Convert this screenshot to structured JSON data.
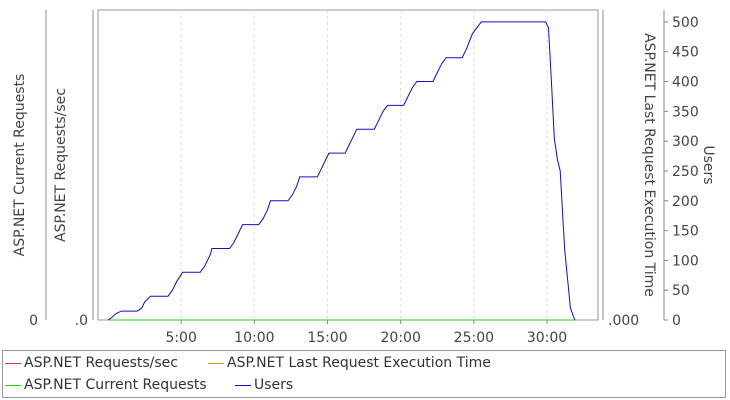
{
  "chart_data": {
    "type": "line",
    "x_axis": {
      "ticks": [
        "5:00",
        "10:00",
        "15:00",
        "20:00",
        "25:00",
        "30:00"
      ],
      "tick_values_min": [
        5,
        10,
        15,
        20,
        25,
        30
      ],
      "range_min": [
        0,
        32.8
      ]
    },
    "y_axes": {
      "left_outer": {
        "label": "ASP.NET Current Requests",
        "ticks": [
          "0"
        ]
      },
      "left_inner": {
        "label": "ASP.NET Requests/sec",
        "ticks": [
          ".0"
        ]
      },
      "right_inner": {
        "label": "ASP.NET Last Request Execution Time",
        "ticks": [
          ".000"
        ]
      },
      "right_outer": {
        "label": "Users",
        "ticks": [
          "0",
          "50",
          "100",
          "150",
          "200",
          "250",
          "300",
          "350",
          "400",
          "450",
          "500"
        ],
        "range": [
          0,
          520
        ]
      }
    },
    "grid": true,
    "series": [
      {
        "name": "ASP.NET Requests/sec",
        "color": "#d04040",
        "x": [
          0,
          32
        ],
        "y": [
          0,
          0
        ]
      },
      {
        "name": "ASP.NET Last Request Execution Time",
        "color": "#d9a400",
        "x": [
          0,
          32
        ],
        "y": [
          0,
          0
        ]
      },
      {
        "name": "ASP.NET Current Requests",
        "color": "#22cc22",
        "x": [
          0,
          32
        ],
        "y": [
          0,
          0
        ]
      },
      {
        "name": "Users",
        "color": "#1010c0",
        "x": [
          0,
          0.3,
          0.5,
          0.9,
          1.0,
          2.0,
          2.3,
          2.5,
          2.9,
          3.0,
          4.1,
          4.4,
          4.7,
          5.1,
          5.2,
          6.3,
          6.6,
          7.0,
          7.1,
          8.3,
          8.6,
          8.9,
          9.2,
          10.3,
          10.6,
          10.9,
          11.1,
          12.3,
          12.6,
          12.9,
          13.1,
          14.3,
          14.6,
          14.9,
          15.1,
          16.2,
          16.5,
          16.8,
          17.0,
          18.2,
          18.5,
          18.8,
          19.1,
          20.2,
          20.5,
          20.8,
          21.1,
          22.2,
          22.5,
          22.8,
          23.1,
          24.2,
          24.5,
          24.9,
          25.5,
          29.9,
          30.1,
          30.3,
          30.5,
          30.7,
          30.9,
          31.2,
          31.6,
          31.9
        ],
        "y": [
          0,
          5,
          10,
          15,
          15,
          15,
          20,
          30,
          40,
          40,
          40,
          50,
          65,
          80,
          80,
          80,
          90,
          110,
          120,
          120,
          130,
          145,
          160,
          160,
          170,
          185,
          200,
          200,
          210,
          225,
          240,
          240,
          255,
          270,
          280,
          280,
          295,
          310,
          320,
          320,
          335,
          350,
          360,
          360,
          375,
          390,
          400,
          400,
          415,
          430,
          440,
          440,
          455,
          480,
          500,
          500,
          490,
          400,
          305,
          270,
          250,
          120,
          20,
          0
        ]
      }
    ],
    "legend_placement": "bottom",
    "legend": [
      "ASP.NET Requests/sec",
      "ASP.NET Last Request Execution Time",
      "ASP.NET Current Requests",
      "Users"
    ]
  }
}
